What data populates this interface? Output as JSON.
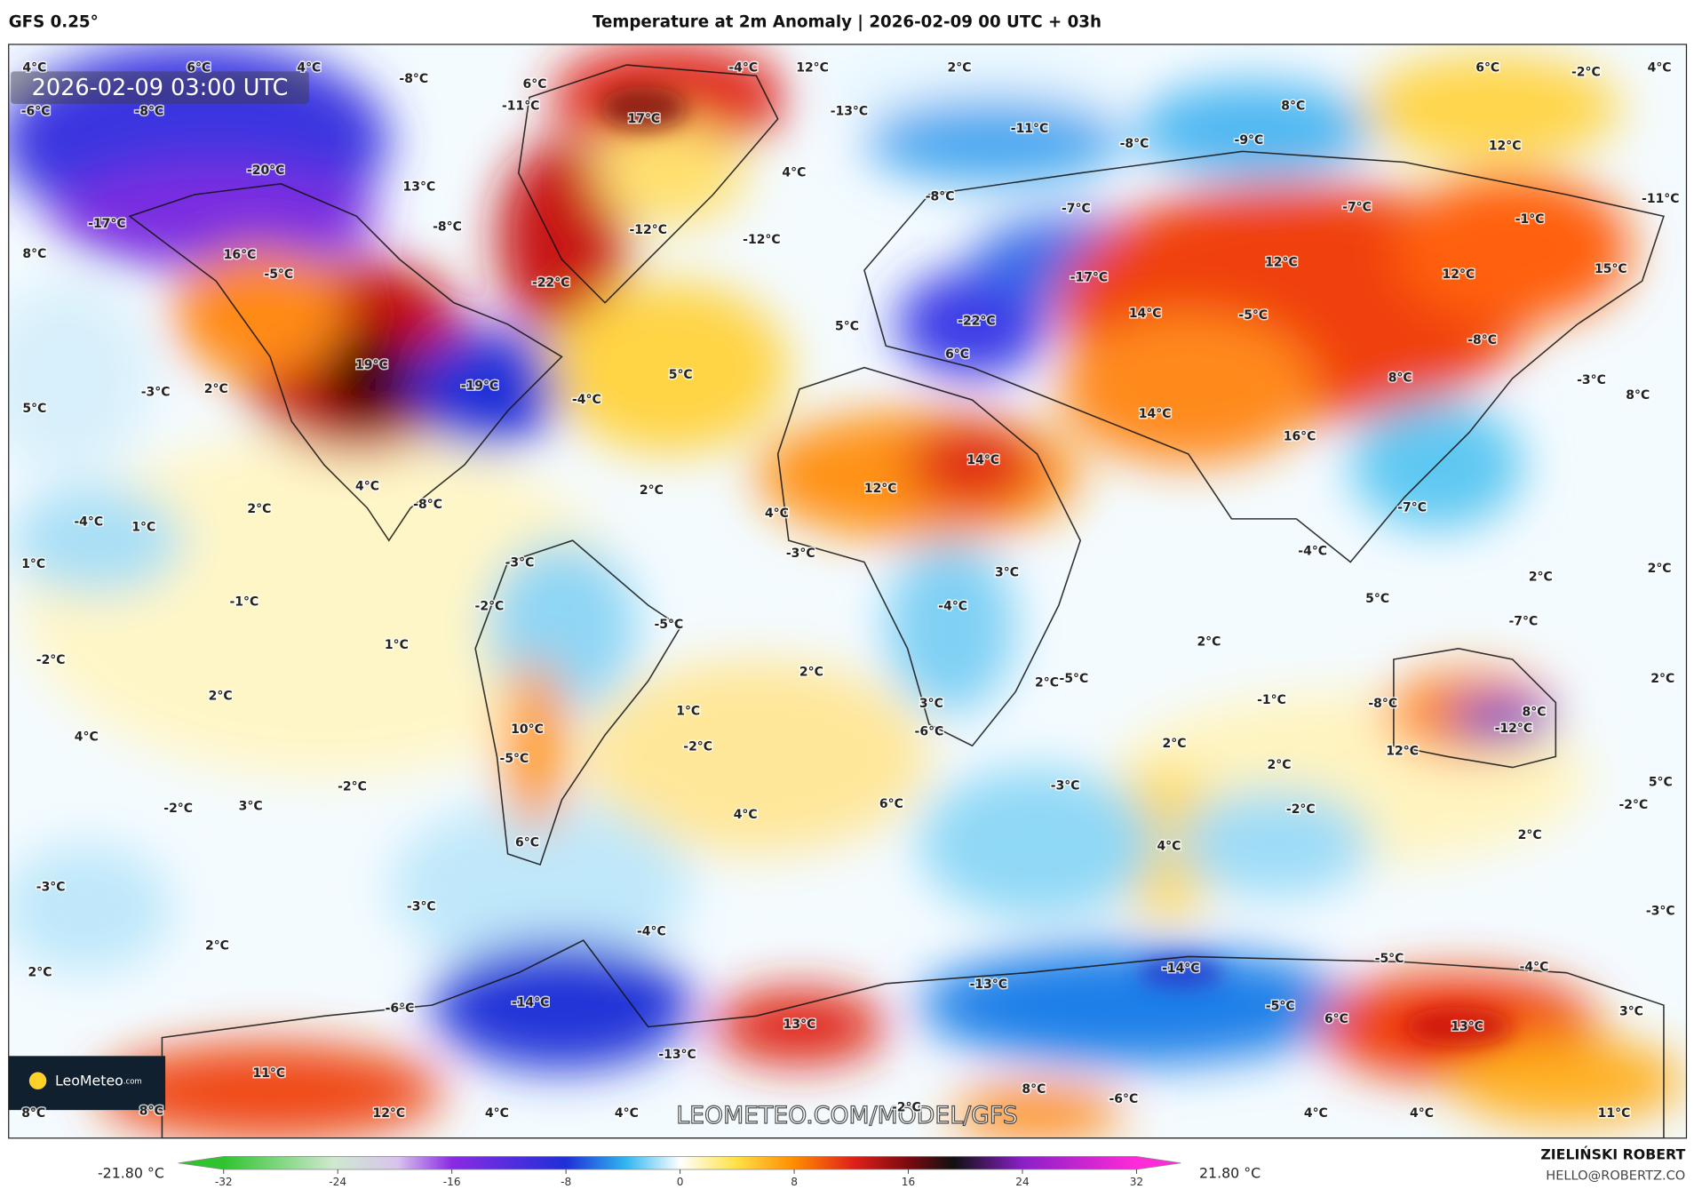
{
  "header": {
    "model": "GFS 0.25°",
    "title": "Temperature at 2m Anomaly | 2026-02-09 00 UTC + 03h"
  },
  "map": {
    "timestamp": "2026-02-09 03:00 UTC",
    "watermark": "LEOMETEO.COM/MODEL/GFS",
    "logo": {
      "name": "LeoMeteo",
      "suffix": ".com"
    },
    "labels": [
      "4°C",
      "6°C",
      "4°C",
      "-8°C",
      "6°C",
      "-4°C",
      "12°C",
      "2°C",
      "6°C",
      "-2°C",
      "4°C",
      "-6°C",
      "-8°C",
      "-11°C",
      "17°C",
      "-13°C",
      "-11°C",
      "8°C",
      "12°C",
      "-8°C",
      "-9°C",
      "-20°C",
      "13°C",
      "4°C",
      "-8°C",
      "-7°C",
      "-7°C",
      "-11°C",
      "-17°C",
      "-8°C",
      "-12°C",
      "-12°C",
      "-1°C",
      "8°C",
      "16°C",
      "-5°C",
      "-22°C",
      "-17°C",
      "12°C",
      "12°C",
      "15°C",
      "5°C",
      "-22°C",
      "14°C",
      "-5°C",
      "6°C",
      "-8°C",
      "19°C",
      "-19°C",
      "2°C",
      "-3°C",
      "5°C",
      "-4°C",
      "5°C",
      "8°C",
      "-3°C",
      "8°C",
      "14°C",
      "14°C",
      "16°C",
      "12°C",
      "4°C",
      "2°C",
      "-8°C",
      "2°C",
      "-4°C",
      "1°C",
      "-7°C",
      "4°C",
      "1°C",
      "-3°C",
      "-3°C",
      "-4°C",
      "3°C",
      "2°C",
      "2°C",
      "-1°C",
      "-2°C",
      "-4°C",
      "5°C",
      "-5°C",
      "-7°C",
      "-2°C",
      "1°C",
      "2°C",
      "2°C",
      "2°C",
      "-5°C",
      "2°C",
      "-1°C",
      "-8°C",
      "2°C",
      "3°C",
      "1°C",
      "8°C",
      "-12°C",
      "-6°C",
      "10°C",
      "4°C",
      "-2°C",
      "2°C",
      "12°C",
      "-5°C",
      "2°C",
      "-2°C",
      "-2°C",
      "3°C",
      "4°C",
      "6°C",
      "-3°C",
      "-2°C",
      "5°C",
      "-2°C",
      "2°C",
      "6°C",
      "4°C",
      "-3°C",
      "-3°C",
      "-3°C",
      "-4°C",
      "2°C",
      "2°C",
      "-5°C",
      "-14°C",
      "-4°C",
      "-13°C",
      "-14°C",
      "-6°C",
      "-5°C",
      "13°C",
      "6°C",
      "13°C",
      "3°C",
      "-13°C",
      "11°C",
      "8°C",
      "-6°C",
      "8°C",
      "8°C",
      "12°C",
      "4°C",
      "4°C",
      "-2°C",
      "4°C",
      "4°C",
      "11°C"
    ]
  },
  "colorbar": {
    "min_label": "-21.80 °C",
    "max_label": "21.80 °C",
    "range": [
      -32,
      32
    ],
    "ticks": [
      -32,
      -24,
      -16,
      -8,
      0,
      8,
      16,
      24,
      32
    ]
  },
  "footer": {
    "author": "ZIELIŃSKI ROBERT",
    "contact": "HELLO@ROBERTZ.CO"
  }
}
